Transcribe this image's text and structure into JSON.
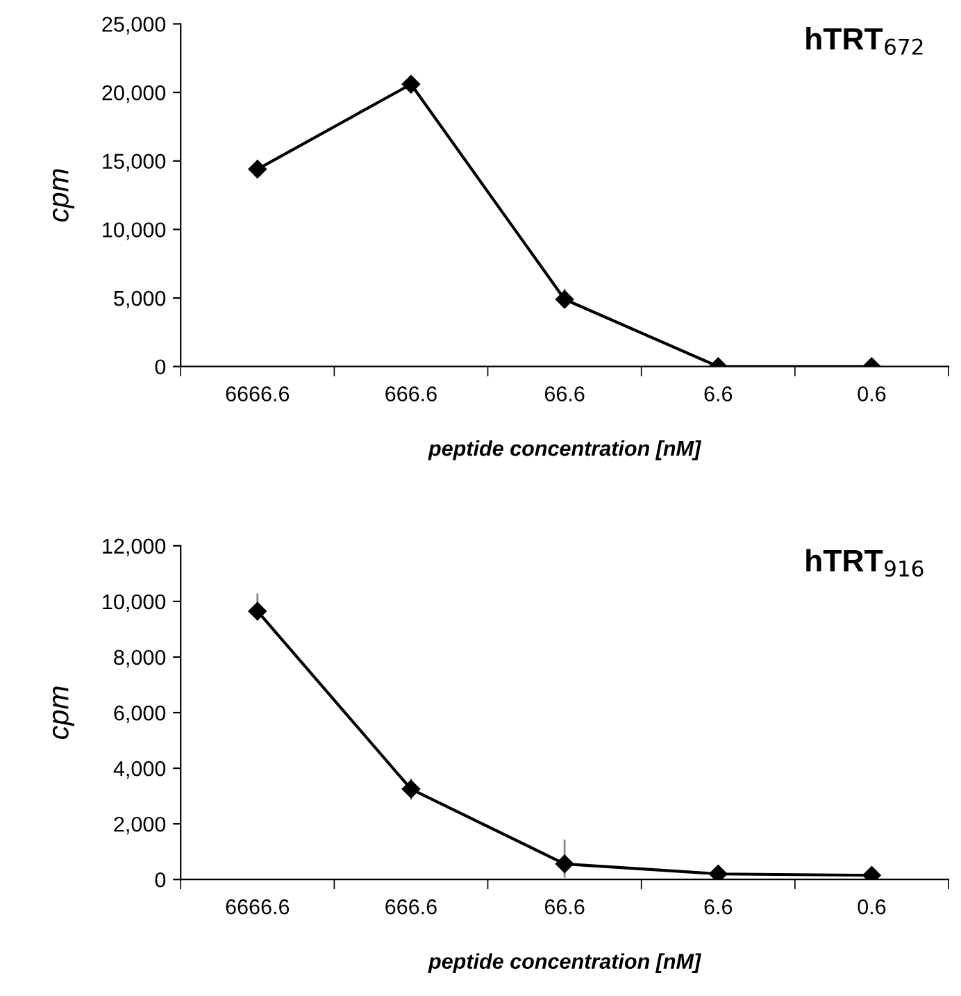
{
  "chart_data": [
    {
      "type": "line",
      "title": "hTRT$_{672}$",
      "xlabel": "peptide concentration [nM]",
      "ylabel": "cpm",
      "categories": [
        "6666.6",
        "666.6",
        "66.6",
        "6.6",
        "0.6"
      ],
      "series": [
        {
          "color": "#000000",
          "values": [
            14400,
            20600,
            4900,
            0,
            0
          ],
          "errors": [
            [
              13900,
              15000
            ],
            null,
            [
              4400,
              5600
            ],
            null,
            null
          ]
        }
      ],
      "ylim": [
        0,
        25000
      ],
      "yticks": [
        {
          "value": 0,
          "label": "0"
        },
        {
          "value": 5000,
          "label": "5,000"
        },
        {
          "value": 10000,
          "label": "10,000"
        },
        {
          "value": 15000,
          "label": "15,000"
        },
        {
          "value": 20000,
          "label": "20,000"
        },
        {
          "value": 25000,
          "label": "25,000"
        }
      ],
      "marker": "diamond",
      "line_style": "solid",
      "grid": false,
      "legend": false
    },
    {
      "type": "line",
      "title": "hTRT$_{916}$",
      "xlabel": "peptide concentration [nM]",
      "ylabel": "cpm",
      "categories": [
        "6666.6",
        "666.6",
        "66.6",
        "6.6",
        "0.6"
      ],
      "series": [
        {
          "color": "#000000",
          "values": [
            9650,
            3250,
            560,
            200,
            150
          ],
          "errors": [
            [
              9350,
              10250
            ],
            [
              2900,
              3600
            ],
            [
              100,
              1400
            ],
            null,
            null
          ]
        }
      ],
      "ylim": [
        0,
        12000
      ],
      "yticks": [
        {
          "value": 0,
          "label": "0"
        },
        {
          "value": 2000,
          "label": "2,000"
        },
        {
          "value": 4000,
          "label": "4,000"
        },
        {
          "value": 6000,
          "label": "6,000"
        },
        {
          "value": 8000,
          "label": "8,000"
        },
        {
          "value": 10000,
          "label": "10,000"
        },
        {
          "value": 12000,
          "label": "12,000"
        }
      ],
      "marker": "diamond",
      "line_style": "solid",
      "grid": false,
      "legend": false
    }
  ]
}
